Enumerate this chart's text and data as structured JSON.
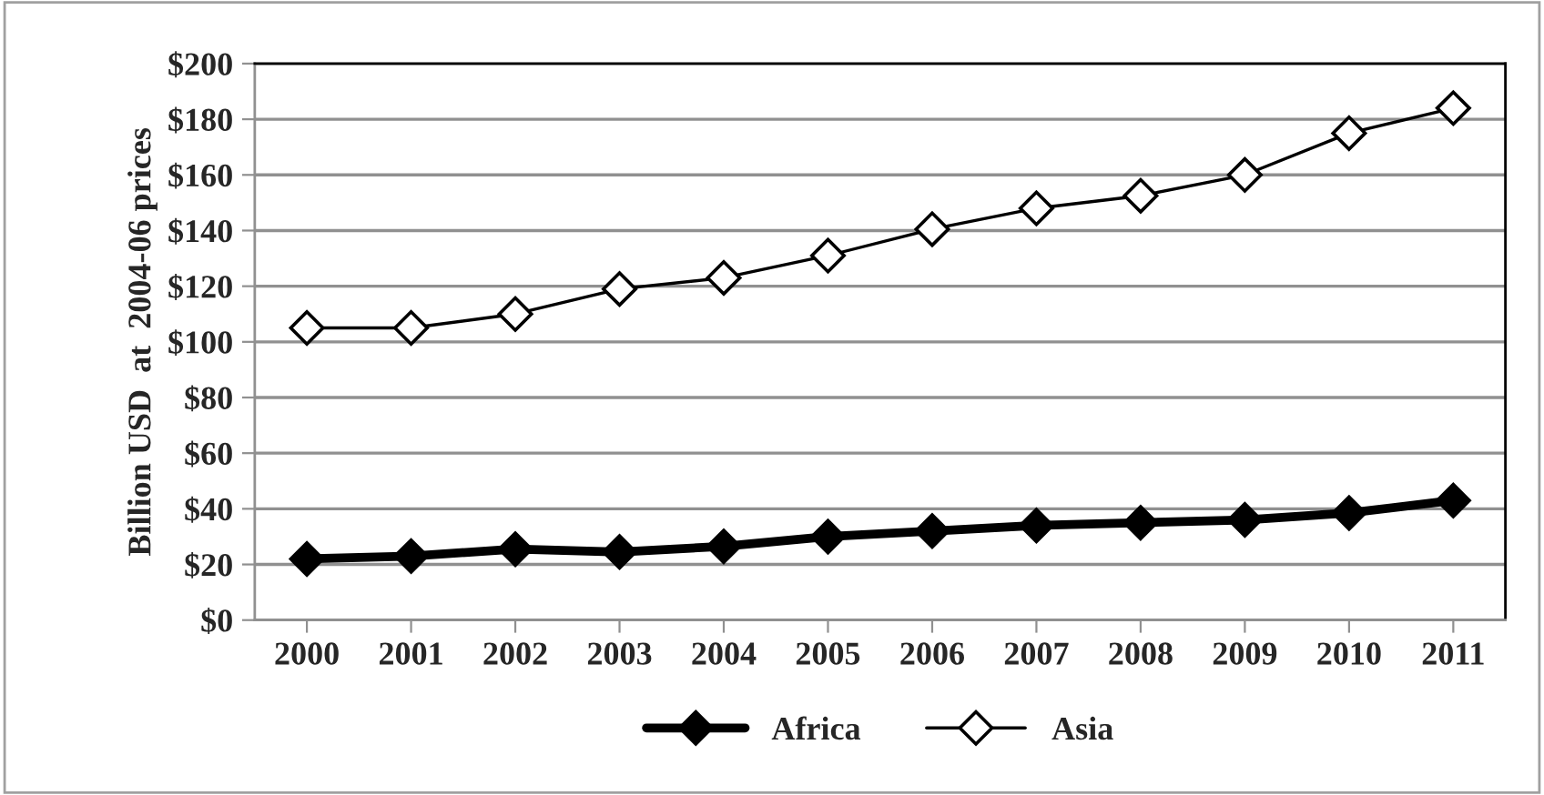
{
  "chart_data": {
    "type": "line",
    "ylabel": "Billion USD  at  2004-06 prices",
    "categories": [
      "2000",
      "2001",
      "2002",
      "2003",
      "2004",
      "2005",
      "2006",
      "2007",
      "2008",
      "2009",
      "2010",
      "2011"
    ],
    "series": [
      {
        "name": "Africa",
        "color": "#000000",
        "values": [
          22,
          23,
          25.5,
          24.5,
          26.5,
          30,
          32,
          34,
          35,
          36,
          38.5,
          43
        ]
      },
      {
        "name": "Asia",
        "color": "#000000",
        "values": [
          105,
          105,
          110,
          119,
          123,
          131,
          140.5,
          148,
          152.5,
          160,
          175,
          184
        ]
      }
    ],
    "ylim": [
      0,
      200
    ],
    "yticks": [
      {
        "value": 0,
        "label": "$0"
      },
      {
        "value": 20,
        "label": "$20"
      },
      {
        "value": 40,
        "label": "$40"
      },
      {
        "value": 60,
        "label": "$60"
      },
      {
        "value": 80,
        "label": "$80"
      },
      {
        "value": 100,
        "label": "$100"
      },
      {
        "value": 120,
        "label": "$120"
      },
      {
        "value": 140,
        "label": "$140"
      },
      {
        "value": 160,
        "label": "$160"
      },
      {
        "value": 180,
        "label": "$180"
      },
      {
        "value": 200,
        "label": "$200"
      }
    ],
    "grid": "y",
    "legend": "bottom",
    "marker": "diamond",
    "line_style": "solid"
  }
}
